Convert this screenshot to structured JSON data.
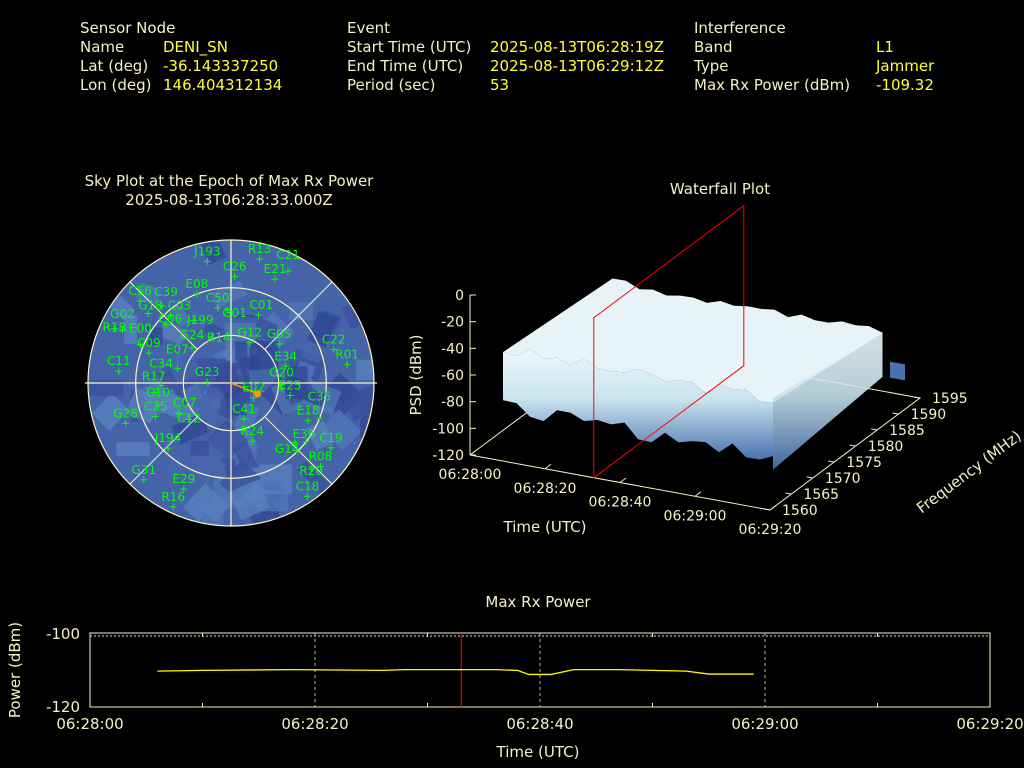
{
  "header": {
    "sensor": {
      "heading": "Sensor Node",
      "rows": [
        {
          "label": "Name",
          "value": "DENI_SN"
        },
        {
          "label": "Lat (deg)",
          "value": "-36.143337250"
        },
        {
          "label": "Lon (deg)",
          "value": "146.404312134"
        }
      ]
    },
    "event": {
      "heading": "Event",
      "rows": [
        {
          "label": "Start Time (UTC)",
          "value": "2025-08-13T06:28:19Z"
        },
        {
          "label": "End Time (UTC)",
          "value": "2025-08-13T06:29:12Z"
        },
        {
          "label": "Period (sec)",
          "value": "53"
        }
      ]
    },
    "interference": {
      "heading": "Interference",
      "rows": [
        {
          "label": "Band",
          "value": "L1"
        },
        {
          "label": "Type",
          "value": "Jammer"
        },
        {
          "label": "Max Rx Power (dBm)",
          "value": "-109.32"
        }
      ]
    }
  },
  "skyplot": {
    "title": "Sky Plot at the Epoch of Max Rx Power",
    "subtitle": "2025-08-13T06:28:33.000Z",
    "colors": {
      "background": "#4463a8",
      "satellite": "#00ff00",
      "jammer": "#ff9900",
      "grid": "#fff8c0"
    },
    "satellites": [
      {
        "id": "G23",
        "az": 272,
        "el": 75
      },
      {
        "id": "E02",
        "az": 123,
        "el": 73
      },
      {
        "id": "C41",
        "az": 160,
        "el": 66
      },
      {
        "id": "R24",
        "az": 160,
        "el": 51
      },
      {
        "id": "G12",
        "az": 25,
        "el": 62
      },
      {
        "id": "G05",
        "az": 51,
        "el": 51
      },
      {
        "id": "E34",
        "az": 73,
        "el": 54
      },
      {
        "id": "C22",
        "az": 72,
        "el": 22
      },
      {
        "id": "R01",
        "az": 81,
        "el": 16
      },
      {
        "id": "E25",
        "az": 102,
        "el": 52
      },
      {
        "id": "G20",
        "az": 96,
        "el": 58
      },
      {
        "id": "E18",
        "az": 116,
        "el": 36
      },
      {
        "id": "C35",
        "az": 112,
        "el": 30
      },
      {
        "id": "C19",
        "az": 123,
        "el": 15
      },
      {
        "id": "R08",
        "az": 133,
        "el": 13
      },
      {
        "id": "E36",
        "az": 128,
        "el": 30
      },
      {
        "id": "G14",
        "az": 133,
        "el": 35
      },
      {
        "id": "R20",
        "az": 137,
        "el": 16
      },
      {
        "id": "C18",
        "az": 146,
        "el": 4
      },
      {
        "id": "G31",
        "az": 222,
        "el": 8
      },
      {
        "id": "E29",
        "az": 204,
        "el": 17
      },
      {
        "id": "R16",
        "az": 205,
        "el": 4
      },
      {
        "id": "G28",
        "az": 249,
        "el": 19
      },
      {
        "id": "C25",
        "az": 246,
        "el": 38
      },
      {
        "id": "J194",
        "az": 224,
        "el": 33
      },
      {
        "id": "C10",
        "az": 253,
        "el": 42
      },
      {
        "id": "C07",
        "az": 240,
        "el": 52
      },
      {
        "id": "C12",
        "az": 229,
        "el": 55
      },
      {
        "id": "R17",
        "az": 263,
        "el": 41
      },
      {
        "id": "C34",
        "az": 268,
        "el": 46
      },
      {
        "id": "E07",
        "az": 285,
        "el": 55
      },
      {
        "id": "C11",
        "az": 276,
        "el": 19
      },
      {
        "id": "C09",
        "az": 290,
        "el": 35
      },
      {
        "id": "E00",
        "az": 293,
        "el": 28
      },
      {
        "id": "G02",
        "az": 296,
        "el": 14
      },
      {
        "id": "R18",
        "az": 295,
        "el": 9
      },
      {
        "id": "C56",
        "az": 312,
        "el": 13
      },
      {
        "id": "G18",
        "az": 310,
        "el": 22
      },
      {
        "id": "C39",
        "az": 318,
        "el": 25
      },
      {
        "id": "C03",
        "az": 318,
        "el": 33
      },
      {
        "id": "C06",
        "az": 312,
        "el": 35
      },
      {
        "id": "J199",
        "az": 329,
        "el": 44
      },
      {
        "id": "G24",
        "az": 312,
        "el": 57
      },
      {
        "id": "R14",
        "az": 337,
        "el": 59
      },
      {
        "id": "E08",
        "az": 339,
        "el": 30
      },
      {
        "id": "C50",
        "az": 350,
        "el": 42
      },
      {
        "id": "G01",
        "az": 357,
        "el": 44
      },
      {
        "id": "C01",
        "az": 22,
        "el": 44
      },
      {
        "id": "C26",
        "az": 2,
        "el": 23
      },
      {
        "id": "J193",
        "az": 349,
        "el": 12
      },
      {
        "id": "R13",
        "az": 13,
        "el": 10
      },
      {
        "id": "E21",
        "az": 23,
        "el": 19
      },
      {
        "id": "C21",
        "az": 27,
        "el": 11
      }
    ],
    "jammer": {
      "az": 112,
      "el": 72
    }
  },
  "waterfall": {
    "title": "Waterfall Plot",
    "zlabel": "PSD (dBm)",
    "xlabel": "Time (UTC)",
    "ylabel": "Frequency (MHz)",
    "psd_ticks": [
      "0",
      "-20",
      "-40",
      "-60",
      "-80",
      "-100",
      "-120"
    ],
    "time_ticks": [
      "06:28:00",
      "06:28:20",
      "06:28:40",
      "06:29:00",
      "06:29:20"
    ],
    "freq_ticks": [
      "1560",
      "1565",
      "1570",
      "1575",
      "1580",
      "1585",
      "1590",
      "1595"
    ],
    "colors": {
      "surface_top": "#eef8fb",
      "surface_low": "#4a72b0",
      "marker_plane": "#ff0000"
    }
  },
  "chart_data": {
    "type": "line",
    "title": "Max Rx Power",
    "xlabel": "Time (UTC)",
    "ylabel": "Power (dBm)",
    "xlim": [
      "06:28:00",
      "06:29:20"
    ],
    "ylim": [
      -120,
      -100
    ],
    "x_ticks": [
      "06:28:00",
      "06:28:20",
      "06:28:40",
      "06:29:00",
      "06:29:20"
    ],
    "y_ticks": [
      "-100",
      "-120"
    ],
    "grid": true,
    "series_color": "#ffff00",
    "marker_time": "06:28:33",
    "marker_color": "#ff0000",
    "x": [
      "06:28:06",
      "06:28:10",
      "06:28:18",
      "06:28:26",
      "06:28:28",
      "06:28:36",
      "06:28:38",
      "06:28:39",
      "06:28:41",
      "06:28:43",
      "06:28:47",
      "06:28:50",
      "06:28:53",
      "06:28:55",
      "06:28:59"
    ],
    "y": [
      -110.3,
      -110.1,
      -109.9,
      -110.1,
      -109.9,
      -109.9,
      -110.1,
      -111.2,
      -111.2,
      -109.9,
      -109.9,
      -110.1,
      -110.3,
      -111.1,
      -111.1
    ]
  }
}
